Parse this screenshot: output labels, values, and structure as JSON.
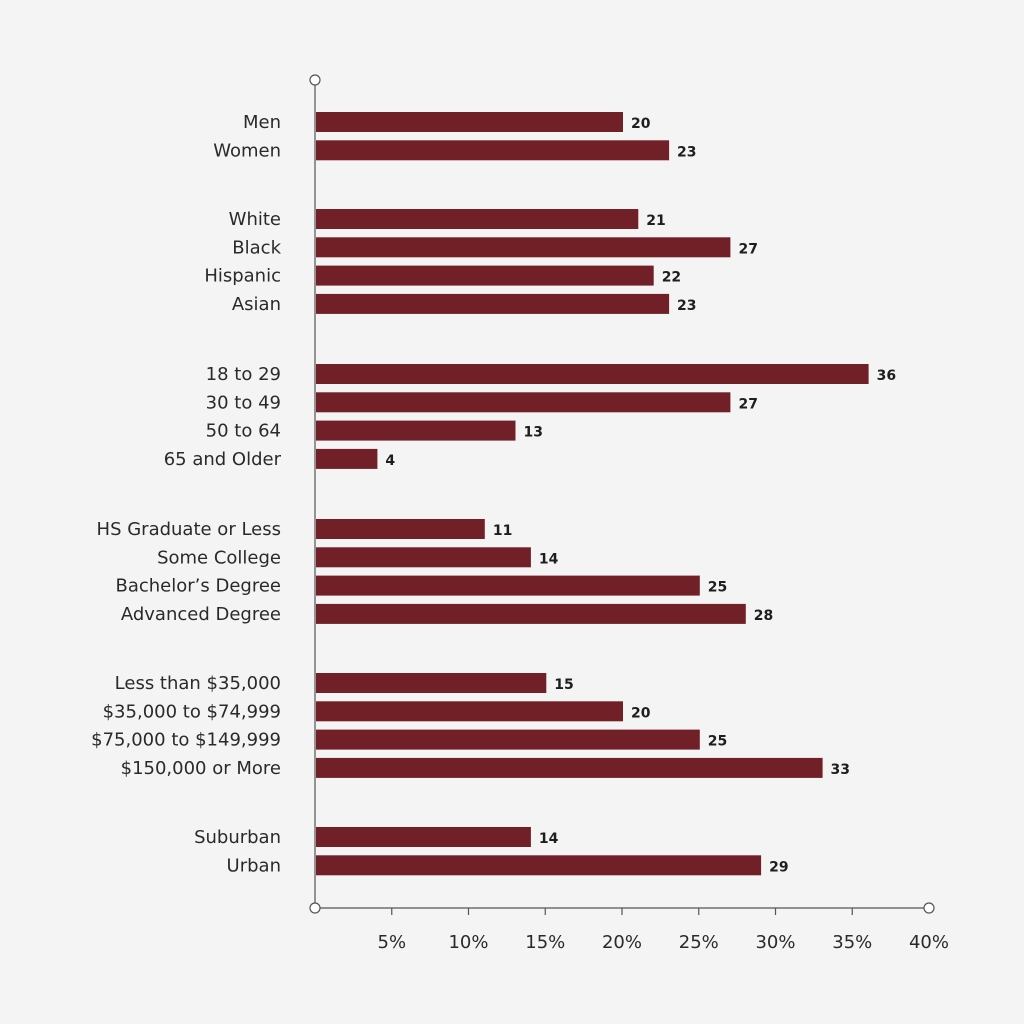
{
  "colors": {
    "background": "#f4f4f4",
    "bar": "#722027",
    "axis": "#555555",
    "text": "#2a2a2a"
  },
  "chart_data": {
    "type": "bar",
    "orientation": "horizontal",
    "title": "",
    "xlabel": "",
    "ylabel": "",
    "xlim": [
      0,
      40
    ],
    "grid": false,
    "legend": "none",
    "x_ticks": [
      "5%",
      "10%",
      "15%",
      "20%",
      "25%",
      "30%",
      "35%",
      "40%"
    ],
    "x_tick_values": [
      5,
      10,
      15,
      20,
      25,
      30,
      35,
      40
    ],
    "groups": [
      {
        "categories": [
          "Men",
          "Women"
        ],
        "values": [
          20,
          23
        ]
      },
      {
        "categories": [
          "White",
          "Black",
          "Hispanic",
          "Asian"
        ],
        "values": [
          21,
          27,
          22,
          23
        ]
      },
      {
        "categories": [
          "18 to 29",
          "30 to 49",
          "50 to 64",
          "65 and Older"
        ],
        "values": [
          36,
          27,
          13,
          4
        ]
      },
      {
        "categories": [
          "HS Graduate or Less",
          "Some College",
          "Bachelor’s Degree",
          "Advanced Degree"
        ],
        "values": [
          11,
          14,
          25,
          28
        ]
      },
      {
        "categories": [
          "Less than $35,000",
          "$35,000 to $74,999",
          "$75,000 to $149,999",
          "$150,000 or More"
        ],
        "values": [
          15,
          20,
          25,
          33
        ]
      },
      {
        "categories": [
          "Suburban",
          "Urban"
        ],
        "values": [
          14,
          29
        ]
      }
    ]
  }
}
